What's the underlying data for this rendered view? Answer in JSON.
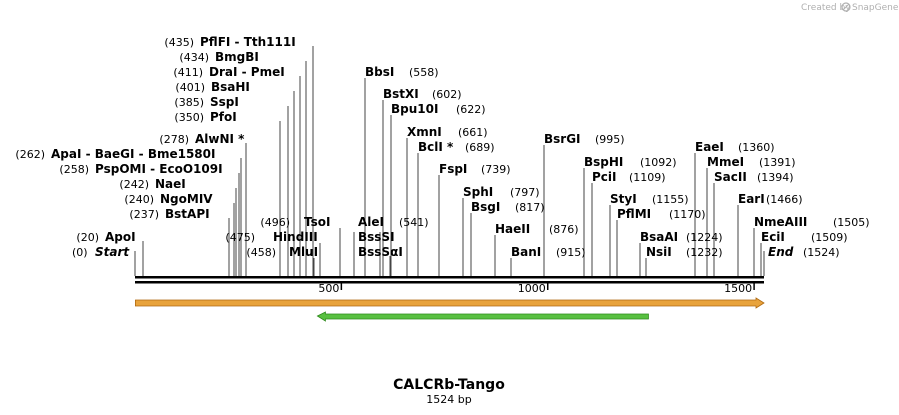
{
  "credit": {
    "text": "Created by",
    "brand": "SnapGene"
  },
  "plasmid": {
    "name": "CALCRb-Tango",
    "size_label": "1524 bp",
    "length": 1524
  },
  "axis": {
    "ticks": [
      {
        "value": 500,
        "label": "500"
      },
      {
        "value": 1000,
        "label": "1000"
      },
      {
        "value": 1500,
        "label": "1500"
      }
    ]
  },
  "colors": {
    "backbone": "#000000",
    "feature_orange": "#e8a33c",
    "feature_orange_border": "#b06a10",
    "feature_green": "#58c040",
    "feature_green_border": "#2f8a1c",
    "credit_logo": "#b0b0b0"
  },
  "features": [
    {
      "name": "orange-arrow-feature",
      "start": 1,
      "end": 1524,
      "direction": "forward",
      "color": "#e8a33c"
    },
    {
      "name": "green-arrow-feature",
      "start": 442,
      "end": 1244,
      "direction": "reverse",
      "color": "#58c040"
    }
  ],
  "ends": {
    "start": {
      "name": "Start",
      "pos": "(0)"
    },
    "end": {
      "name": "End",
      "pos": "(1524)"
    }
  },
  "left_sites": [
    {
      "pos": "(435)",
      "name": "PflFI",
      "alt": " - Tth111I",
      "bp": 435,
      "line": 313
    },
    {
      "pos": "(434)",
      "name": "BmgBI",
      "alt": "",
      "bp": 434,
      "line": 306
    },
    {
      "pos": "(411)",
      "name": "DraI",
      "alt": " - PmeI",
      "bp": 411,
      "line": 300
    },
    {
      "pos": "(401)",
      "name": "BsaHI",
      "alt": "",
      "bp": 401,
      "line": 294
    },
    {
      "pos": "(385)",
      "name": "SspI",
      "alt": "",
      "bp": 385,
      "line": 288
    },
    {
      "pos": "(350)",
      "name": "PfoI",
      "alt": "",
      "bp": 350,
      "line": 280
    },
    {
      "pos": "(278)",
      "name": "AlwNI *",
      "alt": "",
      "bp": 278,
      "line": 246
    },
    {
      "pos": "(262)",
      "name": "ApaI",
      "alt": " - BaeGI  - Bme1580I",
      "bp": 262,
      "line": 241
    },
    {
      "pos": "(258)",
      "name": "PspOMI",
      "alt": " - EcoO109I",
      "bp": 258,
      "line": 239
    },
    {
      "pos": "(242)",
      "name": "NaeI",
      "alt": "",
      "bp": 242,
      "line": 236
    },
    {
      "pos": "(240)",
      "name": "NgoMIV",
      "alt": "",
      "bp": 240,
      "line": 234
    },
    {
      "pos": "(237)",
      "name": "BstAPI",
      "alt": "",
      "bp": 237,
      "line": 229
    },
    {
      "pos": "(20)",
      "name": "ApoI",
      "alt": "",
      "bp": 20,
      "line": 143
    }
  ],
  "center_sites": [
    {
      "pos": "(496)",
      "name": "TsoI",
      "bp": 496
    },
    {
      "pos": "(475)",
      "name": "HindIII",
      "bp": 475
    },
    {
      "pos": "(458)",
      "name": "MluI",
      "bp": 458
    }
  ],
  "right_sites": [
    {
      "name": "BbsI",
      "pos": "(558)",
      "bp": 558
    },
    {
      "name": "BstXI",
      "pos": "(602)",
      "bp": 602
    },
    {
      "name": "Bpu10I",
      "pos": "(622)",
      "bp": 622
    },
    {
      "name": "XmnI",
      "pos": "(661)",
      "bp": 661
    },
    {
      "name": "BclI *",
      "pos": "(689)",
      "bp": 689
    },
    {
      "name": "FspI",
      "pos": "(739)",
      "bp": 739
    },
    {
      "name": "SphI",
      "pos": "(797)",
      "bp": 797
    },
    {
      "name": "BsgI",
      "pos": "(817)",
      "bp": 817
    },
    {
      "name": "HaeII",
      "pos": "(876)",
      "bp": 876
    },
    {
      "name": "BanI",
      "pos": "(915)",
      "bp": 915
    },
    {
      "name": "BsrGI",
      "pos": "(995)",
      "bp": 995
    },
    {
      "name": "BspHI",
      "pos": "(1092)",
      "bp": 1092
    },
    {
      "name": "PciI",
      "pos": "(1109)",
      "bp": 1109
    },
    {
      "name": "StyI",
      "pos": "(1155)",
      "bp": 1155
    },
    {
      "name": "PflMI",
      "pos": "(1170)",
      "bp": 1170
    },
    {
      "name": "BsaAI",
      "pos": "(1224)",
      "bp": 1224
    },
    {
      "name": "NsiI",
      "pos": "(1232)",
      "bp": 1232
    },
    {
      "name": "EaeI",
      "pos": "(1360)",
      "bp": 1360
    },
    {
      "name": "MmeI",
      "pos": "(1391)",
      "bp": 1391
    },
    {
      "name": "SacII",
      "pos": "(1394)",
      "bp": 1394
    },
    {
      "name": "EarI",
      "pos": "(1466)",
      "bp": 1466
    },
    {
      "name": "NmeAIII",
      "pos": "(1505)",
      "bp": 1505
    },
    {
      "name": "EciI",
      "pos": "(1509)",
      "bp": 1509
    }
  ],
  "mid_sites": [
    {
      "name": "AleI",
      "pos": "(541)",
      "bp": 541
    },
    {
      "name": "BssSI",
      "pos": "",
      "bp": 541
    },
    {
      "name": "BssSαI",
      "pos": "",
      "bp": 541
    }
  ]
}
